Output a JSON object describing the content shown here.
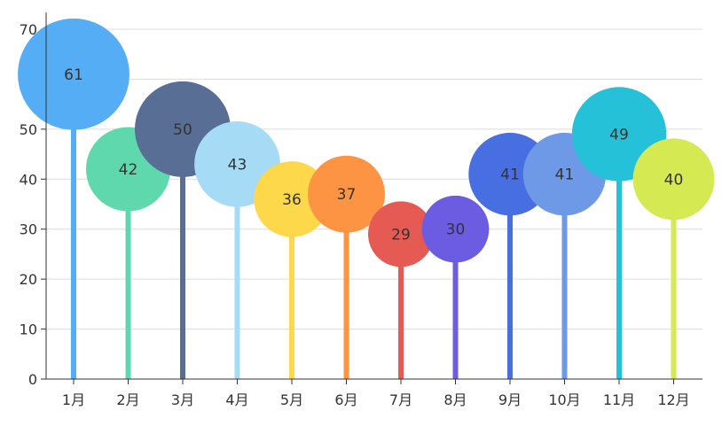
{
  "chart_data": {
    "type": "bar",
    "style": "lollipop",
    "categories": [
      "1月",
      "2月",
      "3月",
      "4月",
      "5月",
      "6月",
      "7月",
      "8月",
      "9月",
      "10月",
      "11月",
      "12月"
    ],
    "values": [
      61,
      42,
      50,
      43,
      36,
      37,
      29,
      30,
      41,
      41,
      49,
      40
    ],
    "colors": [
      "#55adf5",
      "#5fd8ad",
      "#586e94",
      "#a6dbf6",
      "#fdd84a",
      "#fd9444",
      "#e55a53",
      "#6c5ce2",
      "#486fe2",
      "#6e99e6",
      "#24c1d9",
      "#d5e953"
    ],
    "ylim": [
      0,
      70
    ],
    "yticks": [
      "0",
      "10",
      "20",
      "30",
      "40",
      "50",
      "60",
      "70"
    ],
    "grid": true,
    "title": "",
    "xlabel": "",
    "ylabel": ""
  }
}
